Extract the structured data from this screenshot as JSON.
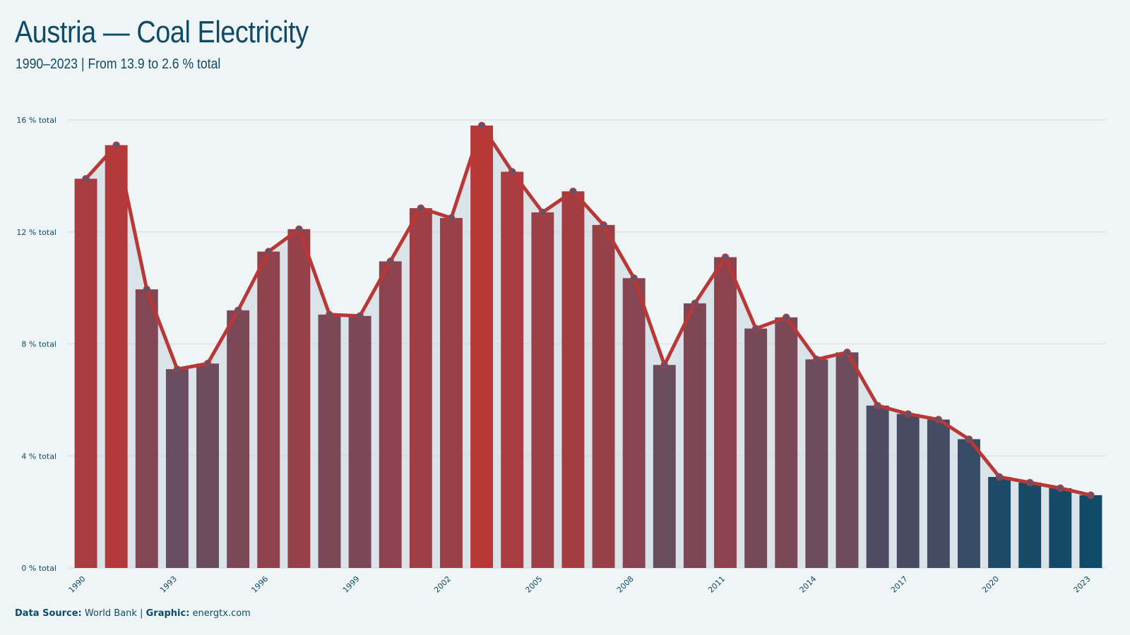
{
  "title": "Austria — Coal Electricity",
  "subtitle": "1990–2023 | From 13.9 to 2.6 % total",
  "footer": {
    "source_label": "Data Source:",
    "source_value": "World Bank",
    "separator": "|",
    "graphic_label": "Graphic:",
    "graphic_value": "energtx.com"
  },
  "colors": {
    "background": "#eff5f5",
    "text": "#0f4a68",
    "line": "#b83838",
    "bar_high": "#b83838",
    "bar_mid": "#6a4c5f",
    "bar_low": "#0f4a68",
    "grid": "#d3dcdf"
  },
  "chart_data": {
    "type": "bar",
    "overlay": "line",
    "categories": [
      "1990",
      "1991",
      "1992",
      "1993",
      "1994",
      "1995",
      "1996",
      "1997",
      "1998",
      "1999",
      "2000",
      "2001",
      "2002",
      "2003",
      "2004",
      "2005",
      "2006",
      "2007",
      "2008",
      "2009",
      "2010",
      "2011",
      "2012",
      "2013",
      "2014",
      "2015",
      "2016",
      "2017",
      "2018",
      "2019",
      "2020",
      "2021",
      "2022",
      "2023"
    ],
    "values": [
      13.9,
      15.1,
      9.95,
      7.1,
      7.3,
      9.2,
      11.3,
      12.1,
      9.05,
      9.0,
      10.95,
      12.85,
      12.5,
      15.8,
      14.15,
      12.7,
      13.45,
      12.25,
      10.35,
      7.25,
      9.45,
      11.1,
      8.55,
      8.95,
      7.45,
      7.7,
      5.8,
      5.5,
      5.3,
      4.6,
      3.25,
      3.05,
      2.85,
      2.6
    ],
    "x_tick_labels": [
      "1990",
      "1993",
      "1996",
      "1999",
      "2002",
      "2005",
      "2008",
      "2011",
      "2014",
      "2017",
      "2020",
      "2023"
    ],
    "y_ticks": [
      0,
      4,
      8,
      12,
      16
    ],
    "y_tick_labels": [
      "0 % total",
      "4 % total",
      "8 % total",
      "12 % total",
      "16 % total"
    ],
    "ylim": [
      0,
      16
    ],
    "grid": true
  }
}
